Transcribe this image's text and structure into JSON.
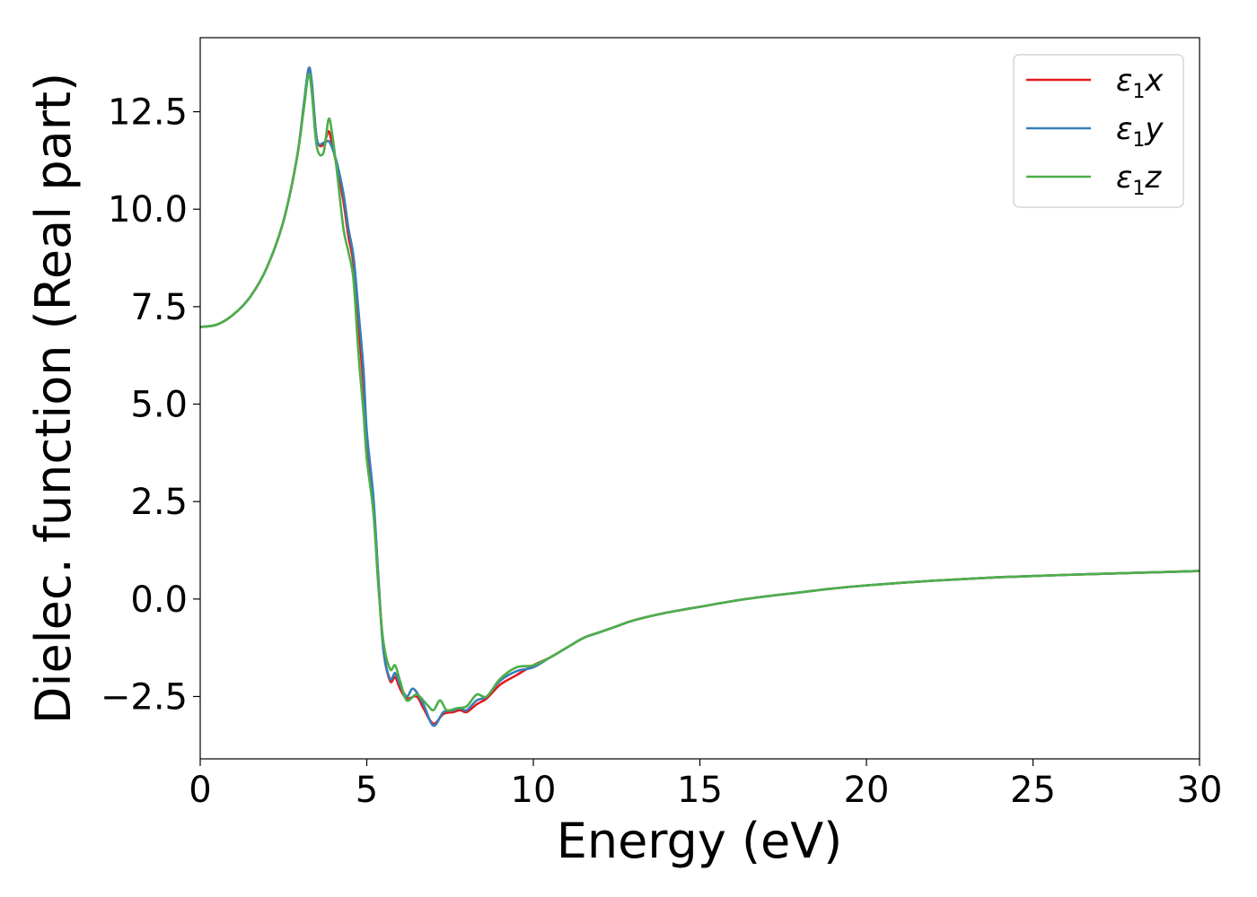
{
  "chart_data": {
    "type": "line",
    "title": "",
    "xlabel": "Energy (eV)",
    "ylabel": "Dielec. function (Real part)",
    "xlim": [
      0,
      30
    ],
    "ylim": [
      -4.1,
      14.4
    ],
    "x_ticks": [
      "0",
      "5",
      "10",
      "15",
      "20",
      "25",
      "30"
    ],
    "y_ticks": [
      "−2.5",
      "0.0",
      "2.5",
      "5.0",
      "7.5",
      "10.0",
      "12.5"
    ],
    "grid": false,
    "legend_position": "top-right",
    "series": [
      {
        "name": "ε1x",
        "legend": {
          "base": "ε",
          "sub": "1",
          "var": "x"
        },
        "color": "#e41a1c",
        "points": [
          [
            0,
            6.98
          ],
          [
            0.5,
            7.04
          ],
          [
            1.0,
            7.3
          ],
          [
            1.5,
            7.75
          ],
          [
            2.0,
            8.5
          ],
          [
            2.5,
            9.7
          ],
          [
            2.9,
            11.3
          ],
          [
            3.1,
            12.6
          ],
          [
            3.25,
            13.55
          ],
          [
            3.35,
            13.2
          ],
          [
            3.5,
            11.8
          ],
          [
            3.7,
            11.65
          ],
          [
            3.85,
            12.0
          ],
          [
            3.95,
            11.7
          ],
          [
            4.1,
            11.1
          ],
          [
            4.3,
            10.2
          ],
          [
            4.45,
            9.3
          ],
          [
            4.6,
            8.6
          ],
          [
            4.75,
            7.0
          ],
          [
            4.9,
            5.5
          ],
          [
            5.0,
            4.0
          ],
          [
            5.2,
            2.5
          ],
          [
            5.35,
            0.5
          ],
          [
            5.5,
            -1.3
          ],
          [
            5.7,
            -2.1
          ],
          [
            5.85,
            -2.0
          ],
          [
            6.0,
            -2.3
          ],
          [
            6.2,
            -2.55
          ],
          [
            6.5,
            -2.5
          ],
          [
            6.7,
            -2.8
          ],
          [
            7.0,
            -3.2
          ],
          [
            7.3,
            -2.95
          ],
          [
            7.6,
            -2.9
          ],
          [
            7.8,
            -2.85
          ],
          [
            8.0,
            -2.9
          ],
          [
            8.3,
            -2.7
          ],
          [
            8.6,
            -2.55
          ],
          [
            9.0,
            -2.2
          ],
          [
            9.5,
            -1.95
          ],
          [
            10.0,
            -1.7
          ],
          [
            10.5,
            -1.5
          ],
          [
            11,
            -1.25
          ],
          [
            11.5,
            -1.0
          ],
          [
            12,
            -0.85
          ],
          [
            12.5,
            -0.7
          ],
          [
            13,
            -0.55
          ],
          [
            14,
            -0.35
          ],
          [
            15,
            -0.2
          ],
          [
            16,
            -0.05
          ],
          [
            17,
            0.07
          ],
          [
            18,
            0.17
          ],
          [
            19,
            0.27
          ],
          [
            20,
            0.35
          ],
          [
            22,
            0.47
          ],
          [
            24,
            0.56
          ],
          [
            26,
            0.62
          ],
          [
            28,
            0.67
          ],
          [
            30,
            0.72
          ]
        ]
      },
      {
        "name": "ε1y",
        "legend": {
          "base": "ε",
          "sub": "1",
          "var": "y"
        },
        "color": "#377eb8",
        "points": [
          [
            0,
            6.98
          ],
          [
            0.5,
            7.04
          ],
          [
            1.0,
            7.3
          ],
          [
            1.5,
            7.75
          ],
          [
            2.0,
            8.5
          ],
          [
            2.5,
            9.7
          ],
          [
            2.9,
            11.3
          ],
          [
            3.1,
            12.6
          ],
          [
            3.25,
            13.6
          ],
          [
            3.35,
            13.25
          ],
          [
            3.5,
            11.8
          ],
          [
            3.7,
            11.7
          ],
          [
            3.85,
            11.75
          ],
          [
            3.95,
            11.6
          ],
          [
            4.1,
            11.2
          ],
          [
            4.3,
            10.4
          ],
          [
            4.45,
            9.5
          ],
          [
            4.6,
            8.8
          ],
          [
            4.75,
            7.4
          ],
          [
            4.9,
            5.9
          ],
          [
            5.0,
            4.3
          ],
          [
            5.2,
            2.6
          ],
          [
            5.35,
            0.5
          ],
          [
            5.5,
            -1.3
          ],
          [
            5.7,
            -2.05
          ],
          [
            5.85,
            -1.9
          ],
          [
            6.0,
            -2.2
          ],
          [
            6.2,
            -2.5
          ],
          [
            6.4,
            -2.3
          ],
          [
            6.7,
            -2.7
          ],
          [
            7.0,
            -3.25
          ],
          [
            7.3,
            -2.9
          ],
          [
            7.6,
            -2.85
          ],
          [
            7.8,
            -2.8
          ],
          [
            8.0,
            -2.85
          ],
          [
            8.3,
            -2.6
          ],
          [
            8.6,
            -2.5
          ],
          [
            9.0,
            -2.1
          ],
          [
            9.5,
            -1.85
          ],
          [
            10.0,
            -1.75
          ],
          [
            10.5,
            -1.5
          ],
          [
            11,
            -1.25
          ],
          [
            11.5,
            -1.0
          ],
          [
            12,
            -0.85
          ],
          [
            12.5,
            -0.7
          ],
          [
            13,
            -0.55
          ],
          [
            14,
            -0.35
          ],
          [
            15,
            -0.2
          ],
          [
            16,
            -0.05
          ],
          [
            17,
            0.07
          ],
          [
            18,
            0.17
          ],
          [
            19,
            0.27
          ],
          [
            20,
            0.35
          ],
          [
            22,
            0.47
          ],
          [
            24,
            0.56
          ],
          [
            26,
            0.62
          ],
          [
            28,
            0.67
          ],
          [
            30,
            0.72
          ]
        ]
      },
      {
        "name": "ε1z",
        "legend": {
          "base": "ε",
          "sub": "1",
          "var": "z"
        },
        "color": "#4daf4a",
        "points": [
          [
            0,
            6.98
          ],
          [
            0.5,
            7.04
          ],
          [
            1.0,
            7.3
          ],
          [
            1.5,
            7.75
          ],
          [
            2.0,
            8.5
          ],
          [
            2.5,
            9.7
          ],
          [
            2.9,
            11.3
          ],
          [
            3.1,
            12.5
          ],
          [
            3.25,
            13.45
          ],
          [
            3.35,
            13.0
          ],
          [
            3.5,
            11.6
          ],
          [
            3.7,
            11.45
          ],
          [
            3.85,
            12.3
          ],
          [
            3.95,
            12.0
          ],
          [
            4.1,
            11.0
          ],
          [
            4.3,
            9.5
          ],
          [
            4.45,
            8.9
          ],
          [
            4.6,
            8.2
          ],
          [
            4.75,
            6.3
          ],
          [
            4.9,
            4.8
          ],
          [
            5.0,
            3.6
          ],
          [
            5.2,
            2.2
          ],
          [
            5.35,
            0.3
          ],
          [
            5.5,
            -1.1
          ],
          [
            5.7,
            -1.8
          ],
          [
            5.85,
            -1.7
          ],
          [
            6.0,
            -2.1
          ],
          [
            6.2,
            -2.6
          ],
          [
            6.5,
            -2.45
          ],
          [
            6.8,
            -2.7
          ],
          [
            7.0,
            -2.85
          ],
          [
            7.2,
            -2.6
          ],
          [
            7.4,
            -2.85
          ],
          [
            7.7,
            -2.8
          ],
          [
            8.0,
            -2.75
          ],
          [
            8.3,
            -2.45
          ],
          [
            8.6,
            -2.5
          ],
          [
            9.0,
            -2.05
          ],
          [
            9.5,
            -1.75
          ],
          [
            10.0,
            -1.7
          ],
          [
            10.5,
            -1.5
          ],
          [
            11,
            -1.25
          ],
          [
            11.5,
            -1.0
          ],
          [
            12,
            -0.85
          ],
          [
            12.5,
            -0.7
          ],
          [
            13,
            -0.55
          ],
          [
            14,
            -0.35
          ],
          [
            15,
            -0.2
          ],
          [
            16,
            -0.05
          ],
          [
            17,
            0.07
          ],
          [
            18,
            0.17
          ],
          [
            19,
            0.27
          ],
          [
            20,
            0.35
          ],
          [
            22,
            0.47
          ],
          [
            24,
            0.56
          ],
          [
            26,
            0.62
          ],
          [
            28,
            0.67
          ],
          [
            30,
            0.72
          ]
        ]
      }
    ]
  }
}
